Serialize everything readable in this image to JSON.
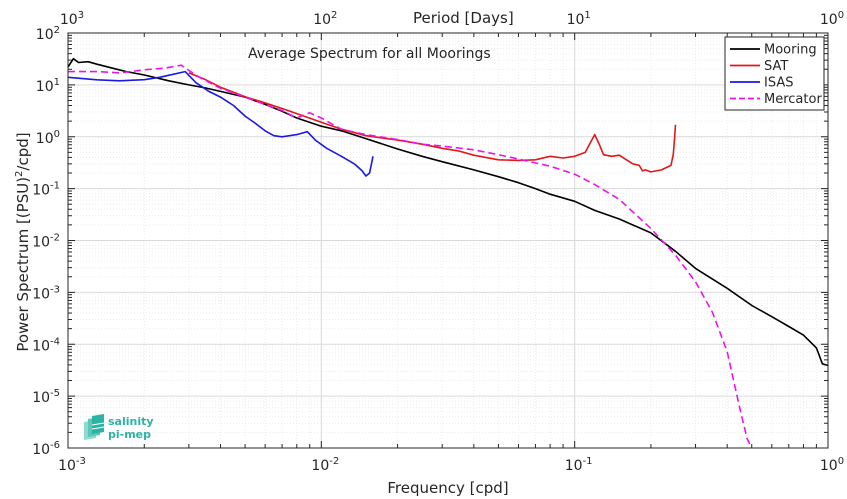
{
  "chart_data": {
    "type": "line",
    "title": "Average Spectrum for all Moorings",
    "xlabel": "Frequency [cpd]",
    "ylabel": "Power Spectrum [(PSU)",
    "ylabel_sup": "2",
    "ylabel_suffix": "/cpd]",
    "x2label": "Period [Days]",
    "xscale": "log",
    "yscale": "log",
    "xlim": [
      0.001,
      1
    ],
    "ylim": [
      1e-06,
      100
    ],
    "grid": true,
    "legend_position": "top-right",
    "xticks": [
      {
        "base": "10",
        "exp": "-3",
        "value": 0.001
      },
      {
        "base": "10",
        "exp": "-2",
        "value": 0.01
      },
      {
        "base": "10",
        "exp": "-1",
        "value": 0.1
      },
      {
        "base": "10",
        "exp": "0",
        "value": 1
      }
    ],
    "x2ticks": [
      {
        "base": "10",
        "exp": "3",
        "value": 1000
      },
      {
        "base": "10",
        "exp": "2",
        "value": 100
      },
      {
        "base": "10",
        "exp": "1",
        "value": 10
      },
      {
        "base": "10",
        "exp": "0",
        "value": 1
      }
    ],
    "yticks": [
      {
        "base": "10",
        "exp": "2",
        "value": 100
      },
      {
        "base": "10",
        "exp": "1",
        "value": 10
      },
      {
        "base": "10",
        "exp": "0",
        "value": 1
      },
      {
        "base": "10",
        "exp": "-1",
        "value": 0.1
      },
      {
        "base": "10",
        "exp": "-2",
        "value": 0.01
      },
      {
        "base": "10",
        "exp": "-3",
        "value": 0.001
      },
      {
        "base": "10",
        "exp": "-4",
        "value": 0.0001
      },
      {
        "base": "10",
        "exp": "-5",
        "value": 1e-05
      },
      {
        "base": "10",
        "exp": "-6",
        "value": 1e-06
      }
    ],
    "series": [
      {
        "name": "Mooring",
        "color": "#000000",
        "dash": "solid",
        "x": [
          0.001,
          0.00105,
          0.0011,
          0.0012,
          0.0013,
          0.0015,
          0.0017,
          0.002,
          0.0025,
          0.003,
          0.0035,
          0.004,
          0.005,
          0.006,
          0.007,
          0.008,
          0.01,
          0.012,
          0.015,
          0.02,
          0.025,
          0.03,
          0.04,
          0.05,
          0.06,
          0.07,
          0.08,
          0.1,
          0.12,
          0.15,
          0.2,
          0.25,
          0.3,
          0.4,
          0.5,
          0.6,
          0.7,
          0.8,
          0.9,
          0.95,
          1.0
        ],
        "y": [
          22,
          32,
          27,
          28,
          25,
          21,
          18,
          15.5,
          12,
          10,
          8.7,
          7.5,
          5.8,
          4.2,
          3.1,
          2.3,
          1.6,
          1.3,
          0.92,
          0.58,
          0.42,
          0.33,
          0.23,
          0.17,
          0.13,
          0.1,
          0.078,
          0.057,
          0.038,
          0.026,
          0.014,
          0.0062,
          0.0029,
          0.0012,
          0.00056,
          0.00034,
          0.00022,
          0.00015,
          8.5e-05,
          4.2e-05,
          3.9e-05
        ]
      },
      {
        "name": "SAT",
        "color": "#e0181a",
        "dash": "solid",
        "x": [
          0.003,
          0.0035,
          0.004,
          0.005,
          0.006,
          0.007,
          0.008,
          0.01,
          0.012,
          0.015,
          0.02,
          0.025,
          0.03,
          0.035,
          0.04,
          0.05,
          0.06,
          0.07,
          0.08,
          0.09,
          0.1,
          0.11,
          0.12,
          0.125,
          0.13,
          0.14,
          0.15,
          0.16,
          0.17,
          0.18,
          0.185,
          0.19,
          0.2,
          0.22,
          0.24,
          0.245,
          0.248,
          0.25
        ],
        "y": [
          17,
          12.5,
          9,
          5.9,
          4.5,
          3.5,
          2.8,
          1.9,
          1.4,
          1.05,
          0.86,
          0.72,
          0.6,
          0.53,
          0.44,
          0.36,
          0.35,
          0.36,
          0.42,
          0.39,
          0.42,
          0.5,
          1.1,
          0.72,
          0.45,
          0.42,
          0.44,
          0.36,
          0.3,
          0.28,
          0.22,
          0.23,
          0.21,
          0.23,
          0.28,
          0.46,
          0.95,
          1.7
        ]
      },
      {
        "name": "ISAS",
        "color": "#1a1ae6",
        "dash": "solid",
        "x": [
          0.001,
          0.0013,
          0.0016,
          0.002,
          0.0023,
          0.0026,
          0.0029,
          0.0032,
          0.0036,
          0.004,
          0.0045,
          0.005,
          0.0055,
          0.006,
          0.0065,
          0.007,
          0.008,
          0.0088,
          0.0095,
          0.0105,
          0.012,
          0.0135,
          0.0145,
          0.015,
          0.0155,
          0.016
        ],
        "y": [
          14,
          12.5,
          12,
          12.6,
          14,
          16,
          18,
          11,
          7.5,
          5.8,
          4,
          2.5,
          1.8,
          1.3,
          1.05,
          1.0,
          1.1,
          1.25,
          0.85,
          0.6,
          0.42,
          0.3,
          0.22,
          0.175,
          0.2,
          0.42
        ]
      },
      {
        "name": "Mercator",
        "color": "#ee11ee",
        "dash": "dashed",
        "x": [
          0.001,
          0.0013,
          0.0016,
          0.002,
          0.0024,
          0.0028,
          0.003,
          0.0033,
          0.004,
          0.005,
          0.006,
          0.007,
          0.008,
          0.009,
          0.01,
          0.012,
          0.015,
          0.02,
          0.025,
          0.03,
          0.04,
          0.05,
          0.06,
          0.08,
          0.1,
          0.12,
          0.15,
          0.2,
          0.25,
          0.3,
          0.35,
          0.4,
          0.45,
          0.48,
          0.5
        ],
        "y": [
          18,
          18,
          17,
          19.5,
          21,
          24,
          19,
          14,
          8.6,
          5.8,
          4.2,
          3.2,
          2.3,
          2.9,
          2.3,
          1.4,
          1.1,
          0.88,
          0.72,
          0.66,
          0.56,
          0.45,
          0.37,
          0.27,
          0.19,
          0.12,
          0.062,
          0.017,
          0.0052,
          0.0016,
          0.00041,
          7.2e-05,
          5.5e-06,
          1.5e-06,
          1e-06
        ]
      }
    ]
  },
  "logo": {
    "line1": "salinity",
    "line2": "pi-mep",
    "color": "#2bb3a4"
  }
}
